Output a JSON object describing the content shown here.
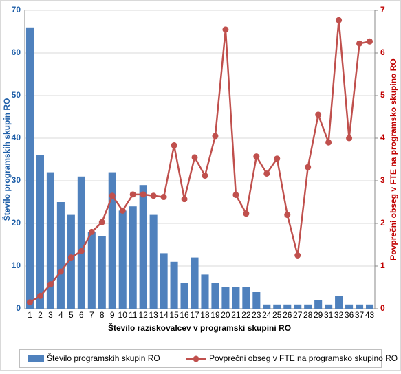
{
  "chart_data": {
    "type": "bar_line",
    "x_label": "Število raziskovalcev v programski skupini RO",
    "y_label": "Število programskih skupin RO",
    "y2_label": "Povprečni obseg v FTE na programsko skupino RO",
    "categories": [
      "1",
      "2",
      "3",
      "4",
      "5",
      "6",
      "7",
      "8",
      "9",
      "10",
      "11",
      "12",
      "13",
      "14",
      "15",
      "16",
      "17",
      "18",
      "19",
      "20",
      "21",
      "22",
      "23",
      "24",
      "25",
      "26",
      "27",
      "28",
      "29",
      "31",
      "32",
      "36",
      "37",
      "43"
    ],
    "series": [
      {
        "name": "Število programskih skupin RO",
        "type": "bar",
        "color": "#4f81bd",
        "values": [
          66,
          36,
          32,
          25,
          22,
          31,
          18,
          17,
          32,
          23,
          24,
          29,
          22,
          13,
          11,
          6,
          12,
          8,
          6,
          5,
          5,
          5,
          4,
          1,
          1,
          1,
          1,
          1,
          2,
          1,
          3,
          1,
          1,
          1
        ]
      },
      {
        "name": "Povprečni obseg v FTE na programsko skupino RO",
        "type": "line",
        "color": "#c0504d",
        "axis": "y2",
        "values": [
          0.15,
          0.3,
          0.57,
          0.87,
          1.2,
          1.35,
          1.8,
          2.03,
          2.65,
          2.3,
          2.68,
          2.68,
          2.65,
          2.62,
          3.83,
          2.57,
          3.55,
          3.12,
          4.05,
          6.55,
          2.67,
          2.23,
          3.57,
          3.17,
          3.52,
          2.2,
          1.25,
          3.32,
          4.55,
          3.9,
          6.77,
          4.0,
          6.22,
          6.27
        ]
      }
    ],
    "ylim": [
      0,
      70
    ],
    "yticks": [
      0,
      10,
      20,
      30,
      40,
      50,
      60,
      70
    ],
    "y2lim": [
      0,
      7
    ],
    "y2ticks": [
      0,
      1,
      2,
      3,
      4,
      5,
      6,
      7
    ],
    "grid": true,
    "legend": "bottom"
  }
}
